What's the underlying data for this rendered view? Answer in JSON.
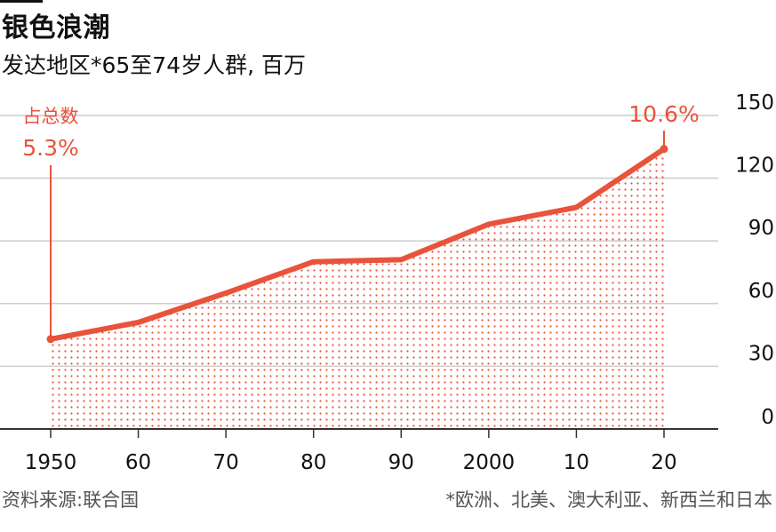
{
  "title": "银色浪潮",
  "subtitle": "发达地区*65至74岁人群, 百万",
  "source": "资料来源:联合国",
  "footnote": "*欧洲、北美、澳大利亚、新西兰和日本",
  "colors": {
    "accent": "#e8533a",
    "grid": "#cccccc",
    "axis": "#333333",
    "text": "#111111"
  },
  "chart_data": {
    "type": "area",
    "title": "银色浪潮",
    "subtitle": "发达地区*65至74岁人群, 百万",
    "x": [
      1950,
      1960,
      1970,
      1980,
      1990,
      2000,
      2010,
      2020
    ],
    "x_tick_labels": [
      "1950",
      "60",
      "70",
      "80",
      "90",
      "2000",
      "10",
      "20"
    ],
    "y_ticks": [
      0,
      30,
      60,
      90,
      120,
      150
    ],
    "ylim": [
      0,
      150
    ],
    "xlim": [
      1950,
      2020
    ],
    "y_axis_position": "right",
    "grid": true,
    "series": [
      {
        "values": [
          43,
          51,
          65,
          80,
          81,
          98,
          106,
          134
        ]
      }
    ],
    "annotations": [
      {
        "x": 1950,
        "label": "占总数",
        "value_label": "5.3%"
      },
      {
        "x": 2020,
        "value_label": "10.6%"
      }
    ]
  }
}
